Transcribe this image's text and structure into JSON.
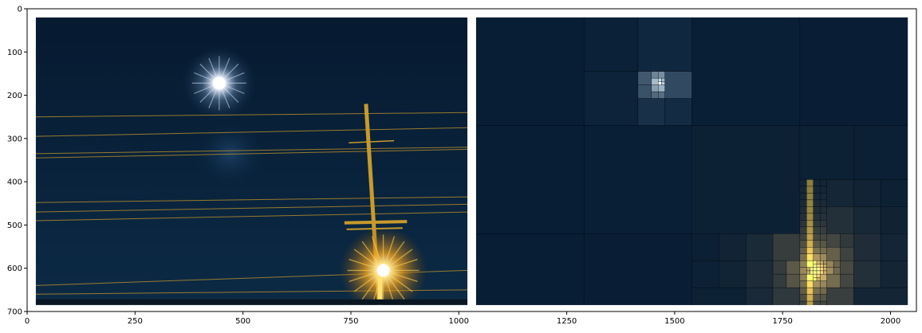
{
  "chart_data": {
    "type": "image",
    "title": "",
    "xlabel": "",
    "ylabel": "",
    "xlim": [
      0,
      2060
    ],
    "ylim": [
      700,
      0
    ],
    "x_ticks": [
      0,
      250,
      500,
      750,
      1000,
      1250,
      1500,
      1750,
      2000
    ],
    "y_ticks": [
      0,
      100,
      200,
      300,
      400,
      500,
      600,
      700
    ],
    "grid": false,
    "panels": [
      {
        "name": "original-photo",
        "description_kind": "night photo",
        "extent_x": [
          20,
          1020
        ],
        "extent_y": [
          20,
          685
        ],
        "features": {
          "moon": [
            445,
            172
          ],
          "streetlight": [
            825,
            605
          ],
          "pole_top": [
            785,
            220
          ],
          "pole_base": [
            815,
            685
          ]
        }
      },
      {
        "name": "quadtree-reconstruction",
        "description_kind": "quadtree mosaic",
        "extent_x": [
          1040,
          2040
        ],
        "extent_y": [
          20,
          685
        ],
        "features": {
          "moon": [
            1465,
            172
          ],
          "streetlight": [
            1830,
            605
          ]
        }
      }
    ]
  },
  "colors": {
    "sky": "#09213a",
    "sky_dark": "#041426",
    "glow_white": "#ffffff",
    "glow_blue": "#8fb4d6",
    "light_orange": "#f5a623",
    "light_yellow": "#ffd95a",
    "wire": "#b08a2a",
    "pole": "#c89a2c"
  }
}
